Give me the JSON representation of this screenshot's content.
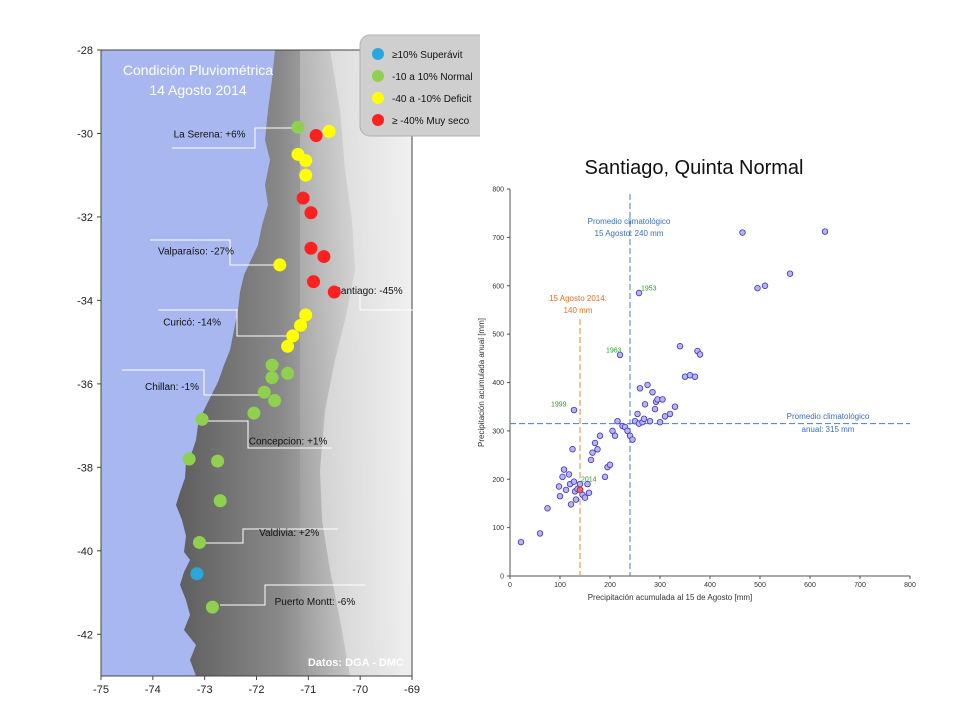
{
  "chart_data": [
    {
      "type": "scatter",
      "title": "Condición Pluviométrica",
      "subtitle": "14 Agosto 2014",
      "source": "Datos: DGA - DMC",
      "xlim": [
        -75,
        -69
      ],
      "ylim": [
        -43,
        -28
      ],
      "x_ticks": [
        "-75",
        "-74",
        "-73",
        "-72",
        "-71",
        "-70",
        "-69"
      ],
      "y_ticks": [
        "-28",
        "-30",
        "-32",
        "-34",
        "-36",
        "-38",
        "-40",
        "-42"
      ],
      "legend": [
        {
          "label": "≥10% Superávit",
          "color": "#29a8e0"
        },
        {
          "label": "-10 a 10% Normal",
          "color": "#8fd14f"
        },
        {
          "label": "-40 a -10% Deficit",
          "color": "#ffff00"
        },
        {
          "label": "≥ -40% Muy seco",
          "color": "#ff2020"
        }
      ],
      "stations": [
        {
          "lon": -71.2,
          "lat": -29.85,
          "cat": 1
        },
        {
          "lon": -70.85,
          "lat": -30.05,
          "cat": 3
        },
        {
          "lon": -70.6,
          "lat": -29.95,
          "cat": 2
        },
        {
          "lon": -71.2,
          "lat": -30.5,
          "cat": 2
        },
        {
          "lon": -71.05,
          "lat": -30.65,
          "cat": 2
        },
        {
          "lon": -71.05,
          "lat": -31.0,
          "cat": 2
        },
        {
          "lon": -71.1,
          "lat": -31.55,
          "cat": 3
        },
        {
          "lon": -70.95,
          "lat": -31.9,
          "cat": 3
        },
        {
          "lon": -71.55,
          "lat": -33.15,
          "cat": 2
        },
        {
          "lon": -70.95,
          "lat": -32.75,
          "cat": 3
        },
        {
          "lon": -70.7,
          "lat": -32.95,
          "cat": 3
        },
        {
          "lon": -70.9,
          "lat": -33.55,
          "cat": 3
        },
        {
          "lon": -70.5,
          "lat": -33.8,
          "cat": 3
        },
        {
          "lon": -71.05,
          "lat": -34.35,
          "cat": 2
        },
        {
          "lon": -71.15,
          "lat": -34.6,
          "cat": 2
        },
        {
          "lon": -71.3,
          "lat": -34.85,
          "cat": 2
        },
        {
          "lon": -71.4,
          "lat": -35.1,
          "cat": 2
        },
        {
          "lon": -71.7,
          "lat": -35.55,
          "cat": 1
        },
        {
          "lon": -71.7,
          "lat": -35.85,
          "cat": 1
        },
        {
          "lon": -71.4,
          "lat": -35.75,
          "cat": 1
        },
        {
          "lon": -71.85,
          "lat": -36.2,
          "cat": 1
        },
        {
          "lon": -71.65,
          "lat": -36.4,
          "cat": 1
        },
        {
          "lon": -72.05,
          "lat": -36.7,
          "cat": 1
        },
        {
          "lon": -73.05,
          "lat": -36.85,
          "cat": 1
        },
        {
          "lon": -73.3,
          "lat": -37.8,
          "cat": 1
        },
        {
          "lon": -72.75,
          "lat": -37.85,
          "cat": 1
        },
        {
          "lon": -72.7,
          "lat": -38.8,
          "cat": 1
        },
        {
          "lon": -73.1,
          "lat": -39.8,
          "cat": 1
        },
        {
          "lon": -73.15,
          "lat": -40.55,
          "cat": 0
        },
        {
          "lon": -72.85,
          "lat": -41.35,
          "cat": 1
        }
      ],
      "city_labels": [
        {
          "text": "La Serena: +6%",
          "lon": -73.6,
          "lat": -30.1
        },
        {
          "text": "Valparaíso: -27%",
          "lon": -73.9,
          "lat": -32.9
        },
        {
          "text": "Santiago: -45%",
          "lon": -70.5,
          "lat": -33.85
        },
        {
          "text": "Curicó: -14%",
          "lon": -73.8,
          "lat": -34.6
        },
        {
          "text": "Chillan: -1%",
          "lon": -74.15,
          "lat": -36.15
        },
        {
          "text": "Concepcion: +1%",
          "lon": -72.15,
          "lat": -37.45
        },
        {
          "text": "Valdivia: +2%",
          "lon": -71.95,
          "lat": -39.65
        },
        {
          "text": "Puerto Montt: -6%",
          "lon": -71.65,
          "lat": -41.3
        }
      ]
    },
    {
      "type": "scatter",
      "title": "Santiago, Quinta Normal",
      "xlabel": "Precipitación acumulada al 15 de Agosto [mm]",
      "ylabel": "Precipitación acumulada anual [mm]",
      "xlim": [
        0,
        800
      ],
      "ylim": [
        0,
        800
      ],
      "x_ticks": [
        "0",
        "100",
        "200",
        "300",
        "400",
        "500",
        "600",
        "700",
        "800"
      ],
      "y_ticks": [
        "0",
        "100",
        "200",
        "300",
        "400",
        "500",
        "600",
        "700",
        "800"
      ],
      "vline_x": 240,
      "hline_y": 315,
      "vline2_x": 140,
      "ann_aug_title": "Promedio climatológico",
      "ann_aug_value": "15 Agosto: 240 mm",
      "ann_annual_title": "Promedio climatológico",
      "ann_annual_value": "anual: 315 mm",
      "ann_2014_title": "15 Agosto 2014:",
      "ann_2014_value": "140 mm",
      "label_1953": "1953",
      "label_1963": "1963",
      "label_1999": "1999",
      "label_2014": "2014",
      "points": [
        [
          22,
          70
        ],
        [
          60,
          88
        ],
        [
          75,
          140
        ],
        [
          98,
          185
        ],
        [
          100,
          165
        ],
        [
          105,
          205
        ],
        [
          108,
          220
        ],
        [
          112,
          178
        ],
        [
          118,
          210
        ],
        [
          120,
          190
        ],
        [
          122,
          148
        ],
        [
          125,
          262
        ],
        [
          128,
          195
        ],
        [
          130,
          175
        ],
        [
          132,
          158
        ],
        [
          135,
          180
        ],
        [
          140,
          190
        ],
        [
          145,
          168
        ],
        [
          150,
          162
        ],
        [
          155,
          190
        ],
        [
          158,
          172
        ],
        [
          162,
          240
        ],
        [
          165,
          255
        ],
        [
          170,
          275
        ],
        [
          175,
          262
        ],
        [
          180,
          290
        ],
        [
          190,
          205
        ],
        [
          195,
          225
        ],
        [
          200,
          230
        ],
        [
          205,
          300
        ],
        [
          210,
          290
        ],
        [
          215,
          320
        ],
        [
          220,
          457
        ],
        [
          225,
          310
        ],
        [
          230,
          308
        ],
        [
          235,
          300
        ],
        [
          240,
          290
        ],
        [
          245,
          282
        ],
        [
          250,
          320
        ],
        [
          255,
          335
        ],
        [
          258,
          315
        ],
        [
          260,
          388
        ],
        [
          265,
          318
        ],
        [
          268,
          325
        ],
        [
          270,
          355
        ],
        [
          275,
          395
        ],
        [
          280,
          320
        ],
        [
          285,
          380
        ],
        [
          290,
          345
        ],
        [
          292,
          360
        ],
        [
          295,
          365
        ],
        [
          300,
          318
        ],
        [
          305,
          365
        ],
        [
          310,
          330
        ],
        [
          320,
          335
        ],
        [
          330,
          350
        ],
        [
          340,
          475
        ],
        [
          350,
          412
        ],
        [
          360,
          415
        ],
        [
          370,
          412
        ],
        [
          375,
          465
        ],
        [
          380,
          458
        ],
        [
          465,
          710
        ],
        [
          495,
          595
        ],
        [
          510,
          600
        ],
        [
          560,
          625
        ],
        [
          630,
          712
        ],
        [
          128,
          343
        ],
        [
          258,
          585
        ]
      ],
      "point_2014": [
        140,
        178
      ]
    }
  ]
}
